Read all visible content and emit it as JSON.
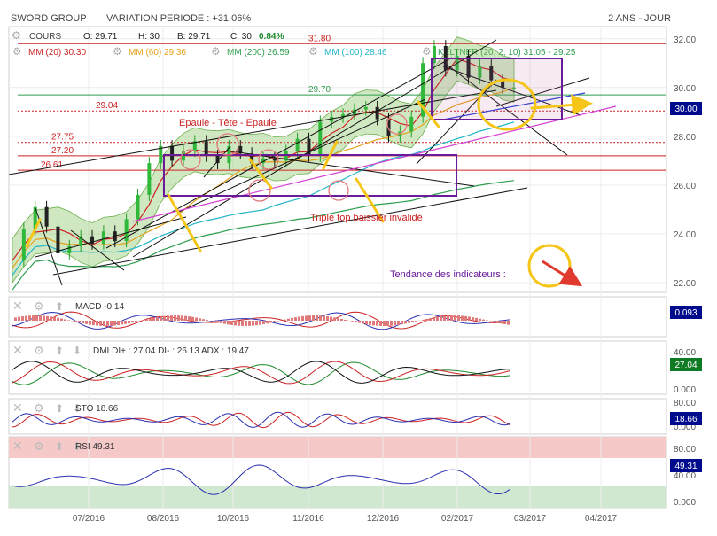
{
  "header": {
    "name": "SWORD GROUP",
    "variation": "VARIATION PERIODE : +31.06%",
    "period": "2 ANS - JOUR",
    "cours_label": "COURS",
    "o": "O: 29.71",
    "h": "H: 30",
    "b": "B: 29.71",
    "c": "C: 30",
    "change": "0.84%"
  },
  "legend": [
    {
      "label": "MM (20)",
      "value": "30.30",
      "color": "#cc2222"
    },
    {
      "label": "MM (60)",
      "value": "29.36",
      "color": "#e5a21b"
    },
    {
      "label": "MM (200)",
      "value": "26.59",
      "color": "#2e9e4e"
    },
    {
      "label": "MM (100)",
      "value": "28.46",
      "color": "#22b5c8"
    },
    {
      "label": "KELTNER (20, 2, 10)",
      "value": "31.05 - 29.25",
      "color": "#2e9e4e"
    }
  ],
  "annotations": {
    "head_shoulders": "Epaule - Tête - Epaule",
    "triple_top": "Triple top baissier invalidé",
    "trend": "Tendance des indicateurs :"
  },
  "levels": [
    {
      "label": "31.80",
      "value": 31.8,
      "color": "#cc2222",
      "style": "solid"
    },
    {
      "label": "29.70",
      "value": 29.7,
      "color": "#2e9e4e",
      "style": "solid"
    },
    {
      "label": "29.04",
      "value": 29.04,
      "color": "#cc2222",
      "style": "dotted"
    },
    {
      "label": "27.75",
      "value": 27.75,
      "color": "#cc2222",
      "style": "dotted"
    },
    {
      "label": "27.20",
      "value": 27.2,
      "color": "#cc2222",
      "style": "solid"
    },
    {
      "label": "26.61",
      "value": 26.61,
      "color": "#cc2222",
      "style": "solid"
    }
  ],
  "last_price": "30.00",
  "chart_data": {
    "type": "line",
    "title": "SWORD GROUP",
    "y_ticks": [
      "32.00",
      "30.00",
      "28.00",
      "26.00",
      "24.00",
      "22.00"
    ],
    "ylim": [
      21.6,
      32.5
    ],
    "x_ticks": [
      "07/2016",
      "08/2016",
      "10/2016",
      "11/2016",
      "12/2016",
      "02/2017",
      "03/2017",
      "04/2017"
    ],
    "price_series": {
      "name": "COURS",
      "x": [
        0,
        3,
        6,
        9,
        12,
        15,
        18,
        21,
        24,
        27,
        30,
        33,
        36,
        39,
        42,
        45,
        48,
        51,
        54,
        57,
        60,
        63,
        66,
        69,
        72,
        75,
        78,
        81,
        84,
        87,
        90,
        93,
        96,
        99,
        102,
        105,
        108,
        111,
        114,
        117,
        120,
        123,
        126,
        129,
        132
      ],
      "values": [
        22.9,
        24.2,
        25.1,
        24.3,
        23.2,
        23.5,
        23.9,
        23.6,
        24.1,
        23.7,
        24.6,
        25.6,
        26.9,
        27.6,
        27.0,
        27.4,
        27.8,
        27.2,
        26.9,
        27.6,
        27.3,
        26.9,
        27.1,
        27.0,
        27.4,
        27.9,
        27.2,
        28.6,
        28.8,
        28.9,
        29.1,
        29.2,
        28.7,
        28.0,
        28.2,
        28.8,
        31.0,
        31.7,
        30.7,
        31.3,
        30.4,
        30.9,
        30.3,
        30.0,
        30.0
      ]
    },
    "indicators": [
      {
        "name": "MACD",
        "label": "MACD -0.14",
        "value_box": "0.093",
        "box_color": "#000a8c",
        "ticks": []
      },
      {
        "name": "DMI",
        "label": "DMI DI+ : 27.04 DI- : 26.13 ADX : 19.47",
        "value_box": "27.04",
        "box_color": "#0f7a24",
        "ticks": [
          "40.00",
          "0.000"
        ]
      },
      {
        "name": "STO",
        "label": "STO 18.66",
        "value_box": "18.66",
        "box_color": "#000a8c",
        "ticks": [
          "80.00",
          "0.000"
        ]
      },
      {
        "name": "RSI",
        "label": "RSI 49.31",
        "value_box": "49.31",
        "box_color": "#000a8c",
        "ticks": [
          "80.00",
          "40.00",
          "0.000"
        ]
      }
    ]
  }
}
